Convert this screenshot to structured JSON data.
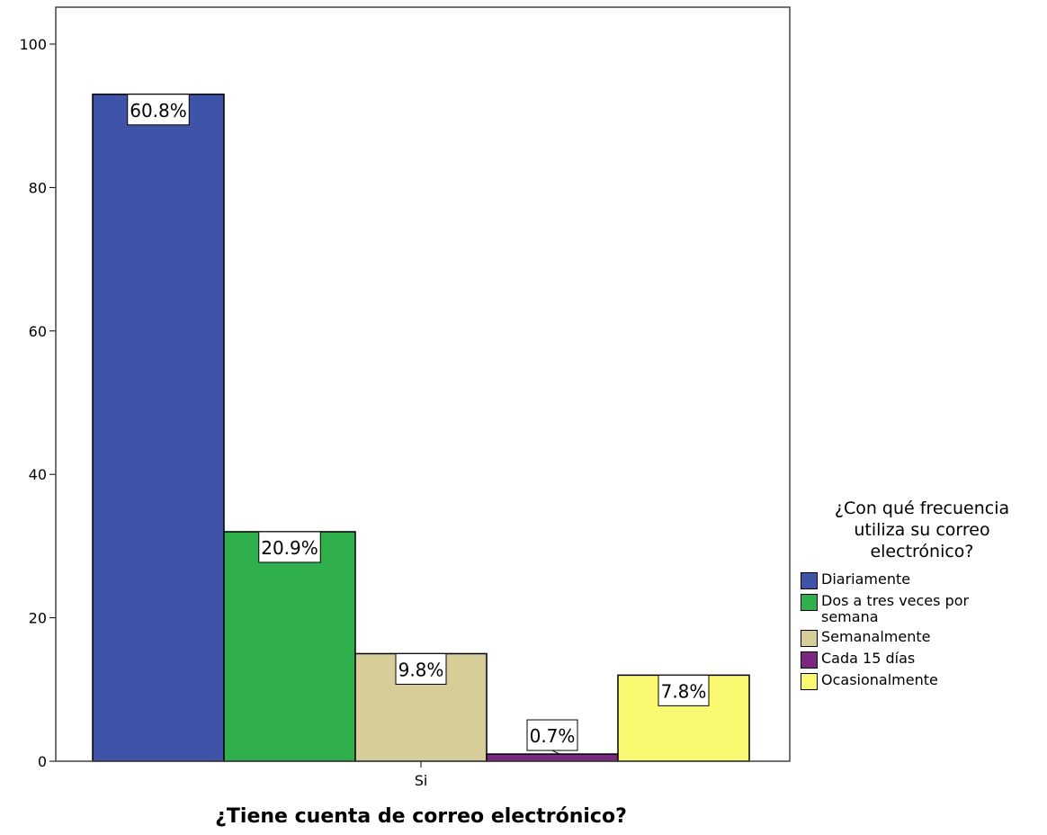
{
  "chart_data": {
    "type": "bar",
    "categories": [
      "Si"
    ],
    "series": [
      {
        "name": "Diariamente",
        "values": [
          93
        ],
        "label": "60.8%",
        "color": "#3f54a8"
      },
      {
        "name": "Dos a tres veces por semana",
        "values": [
          32
        ],
        "label": "20.9%",
        "color": "#2fb04c"
      },
      {
        "name": "Semanalmente",
        "values": [
          15
        ],
        "label": "9.8%",
        "color": "#d6cd99"
      },
      {
        "name": "Cada 15 días",
        "values": [
          1
        ],
        "label": "0.7%",
        "color": "#7b2880"
      },
      {
        "name": "Ocasionalmente",
        "values": [
          12
        ],
        "label": "7.8%",
        "color": "#f9f871"
      }
    ],
    "xlabel": "¿Tiene cuenta de correo electrónico?",
    "ylabel": "",
    "ylim": [
      0,
      100
    ],
    "yticks": [
      "0",
      "20",
      "40",
      "60",
      "80",
      "100"
    ],
    "legend_title": "¿Con qué frecuencia utiliza su correo electrónico?",
    "legend_position": "right",
    "grid": false
  }
}
